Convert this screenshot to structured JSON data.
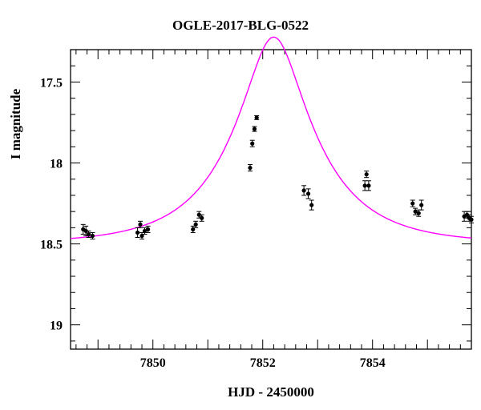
{
  "chart_data": {
    "type": "scatter",
    "title": "OGLE-2017-BLG-0522",
    "xlabel": "HJD - 2450000",
    "ylabel": "I magnitude",
    "xlim": [
      7848.5,
      7855.8
    ],
    "ylim": [
      19.15,
      17.3
    ],
    "y_inverted": true,
    "x_ticks": [
      7850,
      7852,
      7854
    ],
    "y_ticks": [
      17.5,
      18,
      18.5,
      19
    ],
    "y_tick_labels": [
      "17.5",
      "18",
      "18.5",
      "19"
    ],
    "grid": false,
    "colors": {
      "model": "#ff00ff",
      "points": "#000000"
    },
    "series": [
      {
        "type": "scatter",
        "error_bars": true,
        "points": [
          {
            "x": 7848.73,
            "y": 18.41,
            "err": 0.03
          },
          {
            "x": 7848.78,
            "y": 18.42,
            "err": 0.03
          },
          {
            "x": 7848.83,
            "y": 18.44,
            "err": 0.02
          },
          {
            "x": 7848.9,
            "y": 18.45,
            "err": 0.02
          },
          {
            "x": 7849.72,
            "y": 18.43,
            "err": 0.03
          },
          {
            "x": 7849.77,
            "y": 18.38,
            "err": 0.02
          },
          {
            "x": 7849.8,
            "y": 18.45,
            "err": 0.02
          },
          {
            "x": 7849.85,
            "y": 18.42,
            "err": 0.02
          },
          {
            "x": 7849.91,
            "y": 18.41,
            "err": 0.02
          },
          {
            "x": 7850.73,
            "y": 18.41,
            "err": 0.02
          },
          {
            "x": 7850.78,
            "y": 18.38,
            "err": 0.02
          },
          {
            "x": 7850.84,
            "y": 18.32,
            "err": 0.02
          },
          {
            "x": 7850.89,
            "y": 18.34,
            "err": 0.02
          },
          {
            "x": 7851.77,
            "y": 18.03,
            "err": 0.02
          },
          {
            "x": 7851.81,
            "y": 17.88,
            "err": 0.02
          },
          {
            "x": 7851.85,
            "y": 17.79,
            "err": 0.015
          },
          {
            "x": 7851.89,
            "y": 17.72,
            "err": 0.012
          },
          {
            "x": 7852.75,
            "y": 18.17,
            "err": 0.03
          },
          {
            "x": 7852.83,
            "y": 18.19,
            "err": 0.03
          },
          {
            "x": 7852.89,
            "y": 18.26,
            "err": 0.03
          },
          {
            "x": 7853.86,
            "y": 18.14,
            "err": 0.03
          },
          {
            "x": 7853.89,
            "y": 18.07,
            "err": 0.02
          },
          {
            "x": 7853.93,
            "y": 18.14,
            "err": 0.03
          },
          {
            "x": 7854.73,
            "y": 18.25,
            "err": 0.02
          },
          {
            "x": 7854.78,
            "y": 18.3,
            "err": 0.02
          },
          {
            "x": 7854.84,
            "y": 18.31,
            "err": 0.02
          },
          {
            "x": 7854.89,
            "y": 18.26,
            "err": 0.03
          },
          {
            "x": 7855.67,
            "y": 18.33,
            "err": 0.03
          },
          {
            "x": 7855.72,
            "y": 18.32,
            "err": 0.02
          },
          {
            "x": 7855.76,
            "y": 18.34,
            "err": 0.02
          },
          {
            "x": 7855.8,
            "y": 18.35,
            "err": 0.02
          }
        ]
      },
      {
        "type": "line",
        "model": "point-lens microlensing fit",
        "color": "#ff00ff",
        "t0": 7852.2,
        "tE": 1.5,
        "u0": 0.32,
        "baseline_mag": 18.5
      }
    ]
  }
}
